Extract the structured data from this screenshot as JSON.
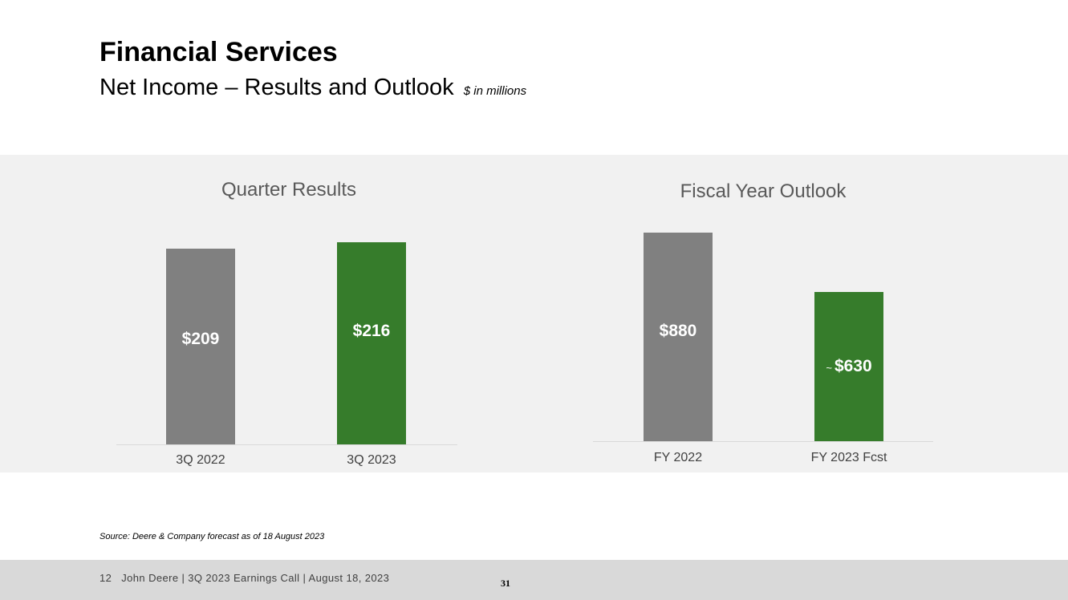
{
  "slide": {
    "title": "Financial Services",
    "subtitle": "Net Income – Results and Outlook",
    "unit_note": "$ in millions",
    "source": "Source: Deere & Company forecast as of 18 August 2023"
  },
  "footer": {
    "slide_number": "12",
    "text": "John Deere | 3Q 2023 Earnings Call | August 18, 2023",
    "page_number": "31"
  },
  "colors": {
    "gray_bar": "#808080",
    "green_bar": "#367c2b",
    "panel_background": "#f1f1f1"
  },
  "chart_data": [
    {
      "type": "bar",
      "title": "Quarter Results",
      "categories": [
        "3Q 2022",
        "3Q 2023"
      ],
      "values": [
        209,
        216
      ],
      "data_labels": [
        "$209",
        "$216"
      ],
      "bar_colors": [
        "#808080",
        "#367c2b"
      ]
    },
    {
      "type": "bar",
      "title": "Fiscal Year Outlook",
      "categories": [
        "FY 2022",
        "FY 2023 Fcst"
      ],
      "values": [
        880,
        630
      ],
      "data_labels": [
        "$880",
        "$630"
      ],
      "label_prefixes": [
        "",
        "~"
      ],
      "bar_colors": [
        "#808080",
        "#367c2b"
      ]
    }
  ]
}
